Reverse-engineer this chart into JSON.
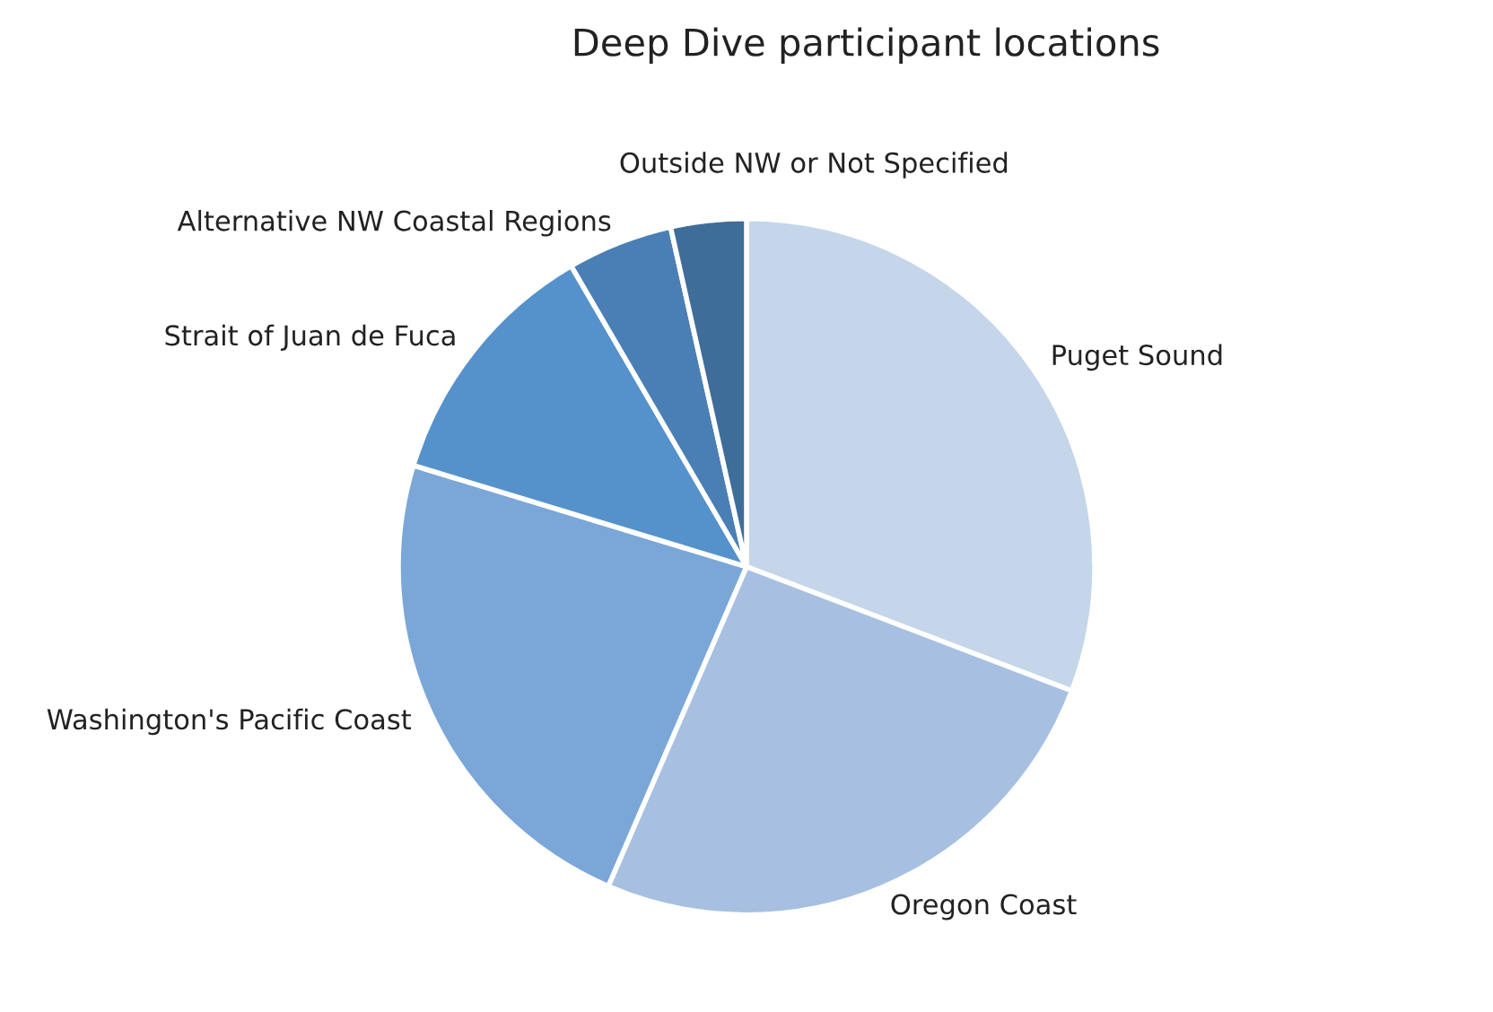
{
  "chart_data": {
    "type": "pie",
    "title": "Deep Dive participant locations",
    "categories": [
      "Puget Sound",
      "Oregon Coast",
      "Washington's Pacific Coast",
      "Strait of Juan de Fuca",
      "Alternative NW Coastal Regions",
      "Outside NW or Not Specified"
    ],
    "values": [
      30.8,
      25.7,
      23.2,
      11.9,
      4.9,
      3.5
    ],
    "colors": [
      "#c5d5ea",
      "#a7c0e2",
      "#7ba7d8",
      "#5592cc",
      "#4a7fb5",
      "#3f6d9a"
    ]
  }
}
